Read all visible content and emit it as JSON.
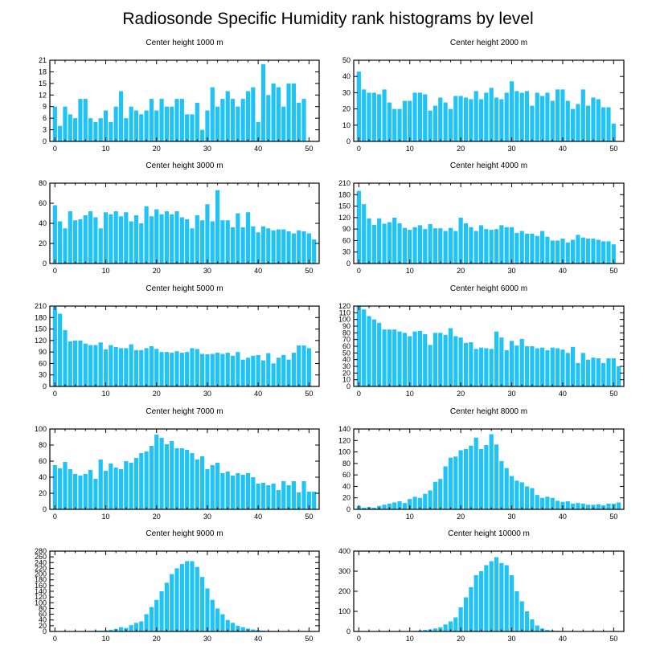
{
  "figure_title": "Radiosonde Specific Humidity rank histograms by level",
  "colors": {
    "bar": "#1fc3f5",
    "axis": "#000000",
    "background": "#ffffff"
  },
  "chart_data": [
    {
      "type": "bar",
      "title": "Center height 1000 m",
      "xlim": [
        -1,
        52
      ],
      "xticks": [
        0,
        10,
        20,
        30,
        40,
        50
      ],
      "ylim": [
        0,
        21
      ],
      "yticks": [
        0,
        3,
        6,
        9,
        12,
        15,
        18,
        21
      ],
      "values": [
        9,
        4,
        9,
        7,
        6,
        11,
        11,
        6,
        5,
        6,
        8,
        5,
        9,
        13,
        6,
        9,
        8,
        7,
        8,
        11,
        8,
        11,
        9,
        9,
        11,
        11,
        7,
        7,
        10,
        3,
        8,
        14,
        9,
        11,
        13,
        11,
        9,
        11,
        13,
        14,
        5,
        20,
        12,
        15,
        14,
        9,
        15,
        15,
        10,
        11
      ]
    },
    {
      "type": "bar",
      "title": "Center height 2000 m",
      "xlim": [
        -1,
        52
      ],
      "xticks": [
        0,
        10,
        20,
        30,
        40,
        50
      ],
      "ylim": [
        0,
        50
      ],
      "yticks": [
        0,
        10,
        20,
        30,
        40,
        50
      ],
      "values": [
        43,
        32,
        30,
        30,
        29,
        32,
        24,
        20,
        20,
        25,
        25,
        30,
        30,
        29,
        19,
        22,
        27,
        24,
        20,
        28,
        28,
        27,
        26,
        31,
        26,
        30,
        33,
        27,
        26,
        30,
        37,
        31,
        30,
        31,
        22,
        30,
        28,
        30,
        25,
        32,
        32,
        25,
        20,
        23,
        32,
        22,
        27,
        26,
        21,
        21,
        11
      ]
    },
    {
      "type": "bar",
      "title": "Center height 3000 m",
      "xlim": [
        -1,
        52
      ],
      "xticks": [
        0,
        10,
        20,
        30,
        40,
        50
      ],
      "ylim": [
        0,
        80
      ],
      "yticks": [
        0,
        20,
        40,
        60,
        80
      ],
      "values": [
        58,
        42,
        35,
        52,
        43,
        44,
        48,
        52,
        46,
        35,
        51,
        49,
        52,
        47,
        51,
        42,
        48,
        40,
        57,
        47,
        54,
        49,
        52,
        49,
        52,
        46,
        44,
        35,
        48,
        43,
        59,
        42,
        73,
        43,
        43,
        36,
        50,
        36,
        51,
        37,
        31,
        37,
        35,
        33,
        34,
        34,
        32,
        30,
        33,
        32,
        30,
        24
      ]
    },
    {
      "type": "bar",
      "title": "Center height 4000 m",
      "xlim": [
        -1,
        52
      ],
      "xticks": [
        0,
        10,
        20,
        30,
        40,
        50
      ],
      "ylim": [
        0,
        210
      ],
      "yticks": [
        0,
        30,
        60,
        90,
        120,
        150,
        180,
        210
      ],
      "values": [
        190,
        155,
        118,
        101,
        118,
        104,
        108,
        120,
        105,
        93,
        88,
        95,
        100,
        90,
        103,
        92,
        92,
        85,
        93,
        85,
        120,
        105,
        95,
        85,
        100,
        90,
        88,
        90,
        100,
        95,
        95,
        80,
        85,
        78,
        78,
        72,
        85,
        70,
        60,
        60,
        65,
        55,
        62,
        75,
        68,
        65,
        65,
        62,
        58,
        58,
        50
      ]
    },
    {
      "type": "bar",
      "title": "Center height 5000 m",
      "xlim": [
        -1,
        52
      ],
      "xticks": [
        0,
        10,
        20,
        30,
        40,
        50
      ],
      "ylim": [
        0,
        210
      ],
      "yticks": [
        0,
        30,
        60,
        90,
        120,
        150,
        180,
        210
      ],
      "values": [
        208,
        190,
        147,
        118,
        120,
        120,
        112,
        108,
        108,
        115,
        97,
        108,
        103,
        100,
        100,
        110,
        95,
        95,
        100,
        105,
        98,
        90,
        90,
        88,
        92,
        88,
        90,
        100,
        98,
        85,
        84,
        85,
        88,
        85,
        88,
        80,
        90,
        70,
        75,
        80,
        82,
        68,
        87,
        60,
        75,
        82,
        70,
        88,
        107,
        107,
        100
      ]
    },
    {
      "type": "bar",
      "title": "Center height 6000 m",
      "xlim": [
        -1,
        52
      ],
      "xticks": [
        0,
        10,
        20,
        30,
        40,
        50
      ],
      "ylim": [
        0,
        120
      ],
      "yticks": [
        0,
        10,
        20,
        30,
        40,
        50,
        60,
        70,
        80,
        90,
        100,
        110,
        120
      ],
      "values": [
        120,
        115,
        105,
        100,
        95,
        85,
        85,
        85,
        82,
        80,
        75,
        82,
        83,
        78,
        62,
        80,
        80,
        77,
        87,
        75,
        73,
        65,
        66,
        56,
        58,
        57,
        56,
        82,
        73,
        54,
        68,
        61,
        71,
        60,
        60,
        57,
        58,
        54,
        58,
        57,
        55,
        50,
        59,
        35,
        50,
        40,
        43,
        42,
        35,
        42,
        42,
        30
      ]
    },
    {
      "type": "bar",
      "title": "Center height 7000 m",
      "xlim": [
        -1,
        52
      ],
      "xticks": [
        0,
        10,
        20,
        30,
        40,
        50
      ],
      "ylim": [
        0,
        100
      ],
      "yticks": [
        0,
        20,
        40,
        60,
        80,
        100
      ],
      "values": [
        55,
        51,
        59,
        50,
        44,
        42,
        44,
        49,
        38,
        62,
        48,
        57,
        52,
        50,
        60,
        58,
        64,
        70,
        72,
        79,
        93,
        89,
        81,
        85,
        76,
        76,
        74,
        70,
        62,
        66,
        50,
        55,
        58,
        45,
        47,
        42,
        45,
        43,
        45,
        40,
        32,
        33,
        30,
        32,
        24,
        35,
        30,
        35,
        21,
        35,
        22,
        22
      ]
    },
    {
      "type": "bar",
      "title": "Center height 8000 m",
      "xlim": [
        -1,
        52
      ],
      "xticks": [
        0,
        10,
        20,
        30,
        40,
        50
      ],
      "ylim": [
        0,
        140
      ],
      "yticks": [
        0,
        20,
        40,
        60,
        80,
        100,
        120,
        140
      ],
      "values": [
        6,
        3,
        4,
        3,
        6,
        8,
        10,
        12,
        14,
        11,
        18,
        22,
        20,
        27,
        33,
        48,
        53,
        75,
        90,
        92,
        103,
        105,
        111,
        125,
        105,
        112,
        131,
        113,
        84,
        72,
        58,
        50,
        47,
        40,
        37,
        25,
        20,
        22,
        20,
        15,
        13,
        14,
        10,
        11,
        10,
        8,
        8,
        9,
        7,
        10,
        10,
        12
      ]
    },
    {
      "type": "bar",
      "title": "Center height 9000 m",
      "xlim": [
        -1,
        52
      ],
      "xticks": [
        0,
        10,
        20,
        30,
        40,
        50
      ],
      "ylim": [
        0,
        280
      ],
      "yticks": [
        0,
        20,
        40,
        60,
        80,
        100,
        120,
        140,
        160,
        180,
        200,
        220,
        240,
        260,
        280
      ],
      "values": [
        0,
        0,
        0,
        0,
        1,
        1,
        1,
        2,
        3,
        3,
        4,
        6,
        9,
        15,
        12,
        22,
        30,
        35,
        60,
        85,
        110,
        140,
        170,
        200,
        220,
        235,
        245,
        245,
        225,
        190,
        150,
        110,
        80,
        60,
        40,
        30,
        20,
        15,
        10,
        7,
        5,
        3,
        2,
        2,
        1,
        1,
        1,
        0,
        0,
        0,
        0,
        0
      ]
    },
    {
      "type": "bar",
      "title": "Center height 10000 m",
      "xlim": [
        -1,
        52
      ],
      "xticks": [
        0,
        10,
        20,
        30,
        40,
        50
      ],
      "ylim": [
        0,
        400
      ],
      "yticks": [
        0,
        100,
        200,
        300,
        400
      ],
      "values": [
        0,
        0,
        0,
        0,
        0,
        0,
        0,
        0,
        1,
        1,
        2,
        3,
        5,
        8,
        10,
        15,
        20,
        35,
        50,
        70,
        120,
        170,
        220,
        280,
        300,
        330,
        350,
        370,
        340,
        330,
        280,
        200,
        150,
        100,
        60,
        30,
        15,
        8,
        5,
        3,
        2,
        2,
        1,
        1,
        1,
        1,
        0,
        0,
        0,
        0,
        0,
        0
      ]
    }
  ]
}
